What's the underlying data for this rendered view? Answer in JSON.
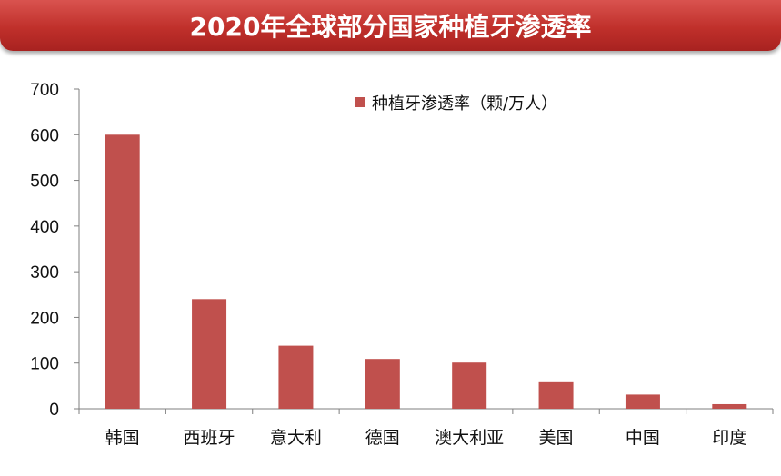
{
  "chart_data": {
    "type": "bar",
    "title": "2020年全球部分国家种植牙渗透率",
    "categories": [
      "韩国",
      "西班牙",
      "意大利",
      "德国",
      "澳大利亚",
      "美国",
      "中国",
      "印度"
    ],
    "series": [
      {
        "name": "种植牙渗透率（颗/万人）",
        "values": [
          600,
          240,
          138,
          109,
          101,
          60,
          31,
          10
        ],
        "color": "#c0504d"
      }
    ],
    "y_ticks": [
      "0",
      "100",
      "200",
      "300",
      "400",
      "500",
      "600",
      "700"
    ],
    "ylim": [
      0,
      700
    ],
    "grid": false,
    "legend_position": "top-right"
  }
}
